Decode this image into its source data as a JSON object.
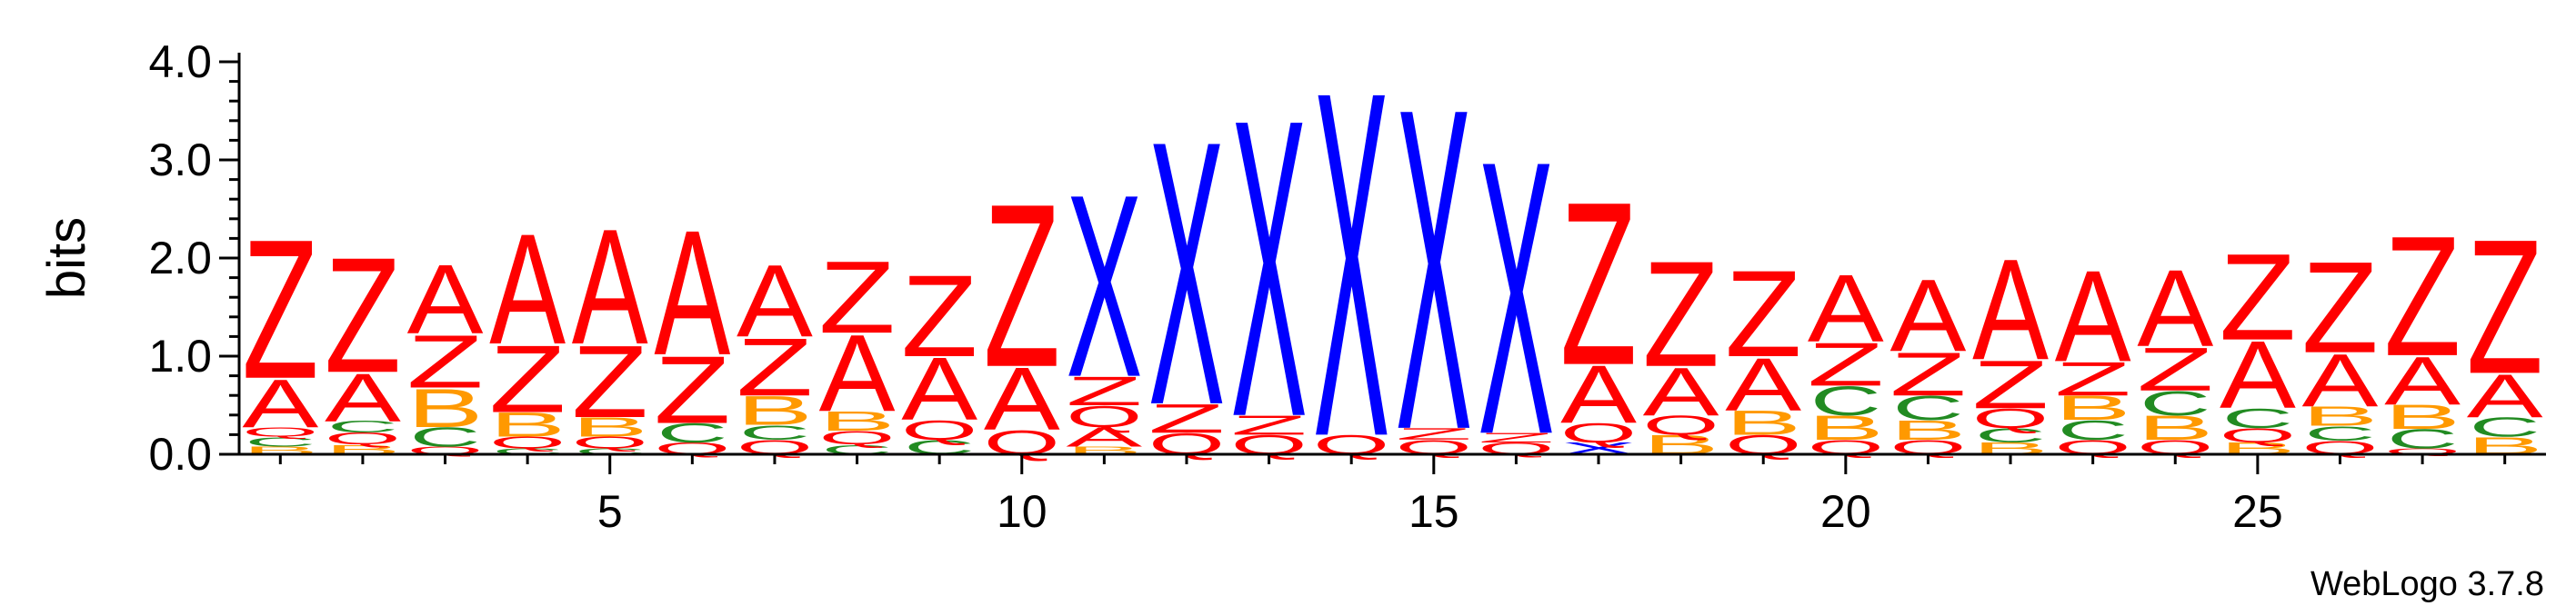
{
  "chart_data": {
    "type": "sequence-logo",
    "ylabel": "bits",
    "ylim": [
      0,
      4
    ],
    "xlim": [
      0.5,
      28.5
    ],
    "y_ticks": [
      "0.0",
      "1.0",
      "2.0",
      "3.0",
      "4.0"
    ],
    "x_ticks": [
      "5",
      "10",
      "15",
      "20",
      "25"
    ],
    "x_tick_values": [
      5,
      10,
      15,
      20,
      25
    ],
    "credit": "WebLogo 3.7.8",
    "colors": {
      "Z": "#ff0000",
      "A": "#ff0000",
      "Q": "#ff0000",
      "X": "#0000ff",
      "B": "#ff9900",
      "C": "#228b22"
    },
    "positions": [
      {
        "pos": 1,
        "stack": [
          [
            "B",
            0.08
          ],
          [
            "C",
            0.1
          ],
          [
            "Q",
            0.1
          ],
          [
            "A",
            0.5
          ],
          [
            "Z",
            1.45
          ]
        ]
      },
      {
        "pos": 2,
        "stack": [
          [
            "B",
            0.1
          ],
          [
            "Q",
            0.12
          ],
          [
            "C",
            0.12
          ],
          [
            "A",
            0.5
          ],
          [
            "Z",
            1.2
          ]
        ]
      },
      {
        "pos": 3,
        "stack": [
          [
            "Q",
            0.08
          ],
          [
            "C",
            0.2
          ],
          [
            "B",
            0.4
          ],
          [
            "Z",
            0.55
          ],
          [
            "A",
            0.72
          ]
        ]
      },
      {
        "pos": 4,
        "stack": [
          [
            "C",
            0.06
          ],
          [
            "Q",
            0.12
          ],
          [
            "B",
            0.25
          ],
          [
            "Z",
            0.7
          ],
          [
            "A",
            1.15
          ]
        ]
      },
      {
        "pos": 5,
        "stack": [
          [
            "C",
            0.06
          ],
          [
            "Q",
            0.12
          ],
          [
            "B",
            0.2
          ],
          [
            "Z",
            0.75
          ],
          [
            "A",
            1.2
          ]
        ]
      },
      {
        "pos": 6,
        "stack": [
          [
            "Q",
            0.12
          ],
          [
            "C",
            0.2
          ],
          [
            "Z",
            0.7
          ],
          [
            "A",
            1.3
          ]
        ]
      },
      {
        "pos": 7,
        "stack": [
          [
            "Q",
            0.15
          ],
          [
            "C",
            0.15
          ],
          [
            "B",
            0.3
          ],
          [
            "Z",
            0.6
          ],
          [
            "A",
            0.75
          ]
        ]
      },
      {
        "pos": 8,
        "stack": [
          [
            "C",
            0.1
          ],
          [
            "Q",
            0.14
          ],
          [
            "B",
            0.2
          ],
          [
            "A",
            0.8
          ],
          [
            "Z",
            0.75
          ]
        ]
      },
      {
        "pos": 9,
        "stack": [
          [
            "C",
            0.15
          ],
          [
            "Q",
            0.2
          ],
          [
            "A",
            0.65
          ],
          [
            "Z",
            0.85
          ]
        ]
      },
      {
        "pos": 10,
        "stack": [
          [
            "Q",
            0.25
          ],
          [
            "A",
            0.65
          ],
          [
            "Z",
            1.7
          ]
        ]
      },
      {
        "pos": 11,
        "stack": [
          [
            "B",
            0.08
          ],
          [
            "A",
            0.2
          ],
          [
            "Q",
            0.22
          ],
          [
            "Z",
            0.3
          ],
          [
            "X",
            1.9
          ]
        ]
      },
      {
        "pos": 12,
        "stack": [
          [
            "Q",
            0.22
          ],
          [
            "Z",
            0.3
          ],
          [
            "X",
            2.75
          ]
        ]
      },
      {
        "pos": 13,
        "stack": [
          [
            "Q",
            0.2
          ],
          [
            "Z",
            0.2
          ],
          [
            "X",
            3.1
          ]
        ]
      },
      {
        "pos": 14,
        "stack": [
          [
            "Q",
            0.2
          ],
          [
            "X",
            3.6
          ]
        ]
      },
      {
        "pos": 15,
        "stack": [
          [
            "Q",
            0.15
          ],
          [
            "Z",
            0.12
          ],
          [
            "X",
            3.35
          ]
        ]
      },
      {
        "pos": 16,
        "stack": [
          [
            "Q",
            0.12
          ],
          [
            "Z",
            0.1
          ],
          [
            "X",
            2.85
          ]
        ]
      },
      {
        "pos": 17,
        "stack": [
          [
            "X",
            0.12
          ],
          [
            "Q",
            0.2
          ],
          [
            "A",
            0.6
          ],
          [
            "Z",
            1.7
          ]
        ]
      },
      {
        "pos": 18,
        "stack": [
          [
            "B",
            0.2
          ],
          [
            "Q",
            0.2
          ],
          [
            "A",
            0.5
          ],
          [
            "Z",
            1.1
          ]
        ]
      },
      {
        "pos": 19,
        "stack": [
          [
            "Q",
            0.2
          ],
          [
            "B",
            0.25
          ],
          [
            "A",
            0.55
          ],
          [
            "Z",
            0.9
          ]
        ]
      },
      {
        "pos": 20,
        "stack": [
          [
            "Q",
            0.15
          ],
          [
            "B",
            0.25
          ],
          [
            "C",
            0.3
          ],
          [
            "Z",
            0.45
          ],
          [
            "A",
            0.7
          ]
        ]
      },
      {
        "pos": 21,
        "stack": [
          [
            "Q",
            0.15
          ],
          [
            "B",
            0.2
          ],
          [
            "C",
            0.25
          ],
          [
            "Z",
            0.45
          ],
          [
            "A",
            0.75
          ]
        ]
      },
      {
        "pos": 22,
        "stack": [
          [
            "B",
            0.12
          ],
          [
            "C",
            0.15
          ],
          [
            "Q",
            0.2
          ],
          [
            "Z",
            0.5
          ],
          [
            "A",
            1.05
          ]
        ]
      },
      {
        "pos": 23,
        "stack": [
          [
            "Q",
            0.15
          ],
          [
            "C",
            0.2
          ],
          [
            "B",
            0.25
          ],
          [
            "Z",
            0.35
          ],
          [
            "A",
            0.95
          ]
        ]
      },
      {
        "pos": 24,
        "stack": [
          [
            "Q",
            0.15
          ],
          [
            "B",
            0.25
          ],
          [
            "C",
            0.25
          ],
          [
            "Z",
            0.45
          ],
          [
            "A",
            0.8
          ]
        ]
      },
      {
        "pos": 25,
        "stack": [
          [
            "B",
            0.12
          ],
          [
            "Q",
            0.15
          ],
          [
            "C",
            0.2
          ],
          [
            "A",
            0.7
          ],
          [
            "Z",
            0.9
          ]
        ]
      },
      {
        "pos": 26,
        "stack": [
          [
            "Q",
            0.14
          ],
          [
            "C",
            0.15
          ],
          [
            "B",
            0.2
          ],
          [
            "A",
            0.55
          ],
          [
            "Z",
            0.95
          ]
        ]
      },
      {
        "pos": 27,
        "stack": [
          [
            "Q",
            0.06
          ],
          [
            "C",
            0.2
          ],
          [
            "B",
            0.25
          ],
          [
            "A",
            0.5
          ],
          [
            "Z",
            1.25
          ]
        ]
      },
      {
        "pos": 28,
        "stack": [
          [
            "B",
            0.18
          ],
          [
            "C",
            0.2
          ],
          [
            "A",
            0.45
          ],
          [
            "Z",
            1.4
          ]
        ]
      }
    ]
  }
}
